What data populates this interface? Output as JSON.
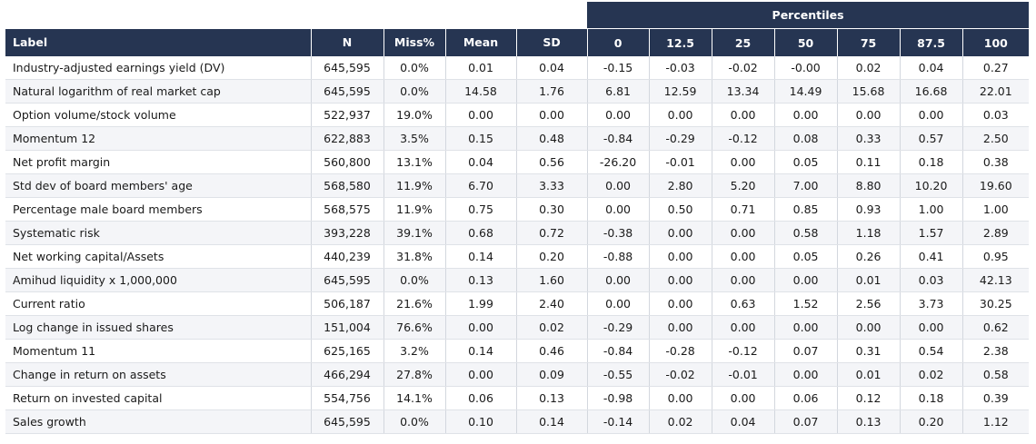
{
  "table": {
    "group_header": "Percentiles",
    "columns": [
      "Label",
      "N",
      "Miss%",
      "Mean",
      "SD",
      "0",
      "12.5",
      "25",
      "50",
      "75",
      "87.5",
      "100"
    ],
    "rows": [
      [
        "Industry-adjusted earnings yield (DV)",
        "645,595",
        "0.0%",
        "0.01",
        "0.04",
        "-0.15",
        "-0.03",
        "-0.02",
        "-0.00",
        "0.02",
        "0.04",
        "0.27"
      ],
      [
        "Natural logarithm of real market cap",
        "645,595",
        "0.0%",
        "14.58",
        "1.76",
        "6.81",
        "12.59",
        "13.34",
        "14.49",
        "15.68",
        "16.68",
        "22.01"
      ],
      [
        "Option volume/stock volume",
        "522,937",
        "19.0%",
        "0.00",
        "0.00",
        "0.00",
        "0.00",
        "0.00",
        "0.00",
        "0.00",
        "0.00",
        "0.03"
      ],
      [
        "Momentum 12",
        "622,883",
        "3.5%",
        "0.15",
        "0.48",
        "-0.84",
        "-0.29",
        "-0.12",
        "0.08",
        "0.33",
        "0.57",
        "2.50"
      ],
      [
        "Net profit margin",
        "560,800",
        "13.1%",
        "0.04",
        "0.56",
        "-26.20",
        "-0.01",
        "0.00",
        "0.05",
        "0.11",
        "0.18",
        "0.38"
      ],
      [
        "Std dev of board members' age",
        "568,580",
        "11.9%",
        "6.70",
        "3.33",
        "0.00",
        "2.80",
        "5.20",
        "7.00",
        "8.80",
        "10.20",
        "19.60"
      ],
      [
        "Percentage male board members",
        "568,575",
        "11.9%",
        "0.75",
        "0.30",
        "0.00",
        "0.50",
        "0.71",
        "0.85",
        "0.93",
        "1.00",
        "1.00"
      ],
      [
        "Systematic risk",
        "393,228",
        "39.1%",
        "0.68",
        "0.72",
        "-0.38",
        "0.00",
        "0.00",
        "0.58",
        "1.18",
        "1.57",
        "2.89"
      ],
      [
        "Net working capital/Assets",
        "440,239",
        "31.8%",
        "0.14",
        "0.20",
        "-0.88",
        "0.00",
        "0.00",
        "0.05",
        "0.26",
        "0.41",
        "0.95"
      ],
      [
        "Amihud liquidity x 1,000,000",
        "645,595",
        "0.0%",
        "0.13",
        "1.60",
        "0.00",
        "0.00",
        "0.00",
        "0.00",
        "0.01",
        "0.03",
        "42.13"
      ],
      [
        "Current ratio",
        "506,187",
        "21.6%",
        "1.99",
        "2.40",
        "0.00",
        "0.00",
        "0.63",
        "1.52",
        "2.56",
        "3.73",
        "30.25"
      ],
      [
        "Log change in issued shares",
        "151,004",
        "76.6%",
        "0.00",
        "0.02",
        "-0.29",
        "0.00",
        "0.00",
        "0.00",
        "0.00",
        "0.00",
        "0.62"
      ],
      [
        "Momentum 11",
        "625,165",
        "3.2%",
        "0.14",
        "0.46",
        "-0.84",
        "-0.28",
        "-0.12",
        "0.07",
        "0.31",
        "0.54",
        "2.38"
      ],
      [
        "Change in return on assets",
        "466,294",
        "27.8%",
        "0.00",
        "0.09",
        "-0.55",
        "-0.02",
        "-0.01",
        "0.00",
        "0.01",
        "0.02",
        "0.58"
      ],
      [
        "Return on invested capital",
        "554,756",
        "14.1%",
        "0.06",
        "0.13",
        "-0.98",
        "0.00",
        "0.00",
        "0.06",
        "0.12",
        "0.18",
        "0.39"
      ],
      [
        "Sales growth",
        "645,595",
        "0.0%",
        "0.10",
        "0.14",
        "-0.14",
        "0.02",
        "0.04",
        "0.07",
        "0.13",
        "0.20",
        "1.12"
      ]
    ]
  },
  "colors": {
    "header_bg": "#263552",
    "header_text": "#ffffff",
    "row_alt_bg": "#f4f5f8"
  }
}
